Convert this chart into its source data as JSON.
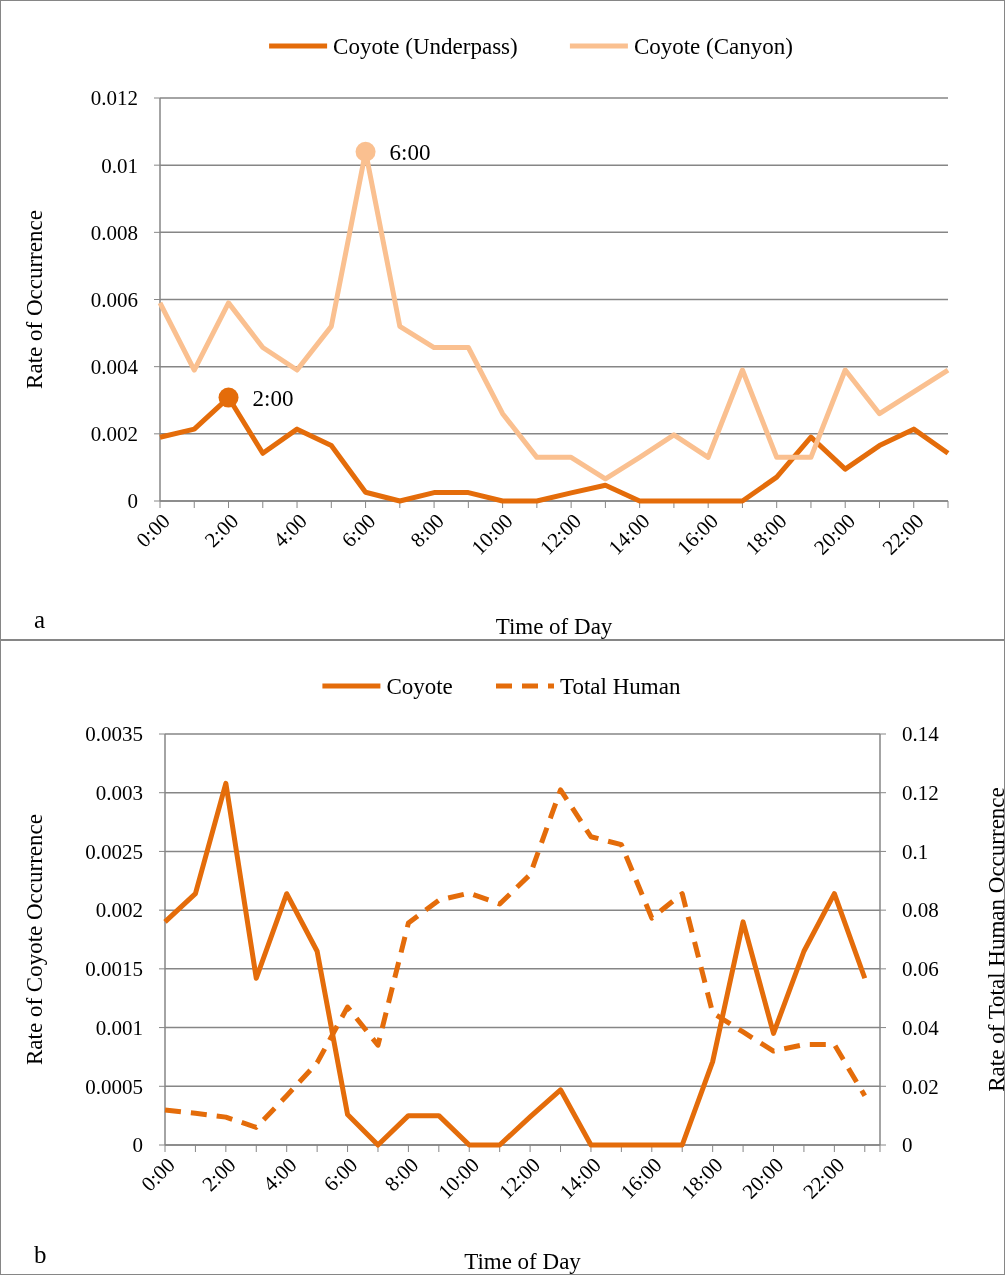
{
  "chart_data": [
    {
      "type": "line",
      "xlabel": "Time of Day",
      "ylabel": "Rate of Occurrence",
      "categories": [
        "0:00",
        null,
        "2:00",
        null,
        "4:00",
        null,
        "6:00",
        null,
        "8:00",
        null,
        "10:00",
        null,
        "12:00",
        null,
        "14:00",
        null,
        "16:00",
        null,
        "18:00",
        null,
        "20:00",
        null,
        "22:00",
        null
      ],
      "series": [
        {
          "name": "Coyote (Underpass)",
          "color": "#e46c0a",
          "values": [
            0.0019,
            0.00214,
            0.00308,
            0.00142,
            0.00214,
            0.00165,
            0.00026,
            0,
            0.00025,
            0.00025,
            0,
            0,
            0.00024,
            0.00047,
            0,
            0,
            0,
            0,
            0.00071,
            0.0019,
            0.00095,
            0.00165,
            0.00214,
            0.00142
          ]
        },
        {
          "name": "Coyote (Canyon)",
          "color": "#fac090",
          "values": [
            0.0059,
            0.0039,
            0.0059,
            0.00457,
            0.0039,
            0.0052,
            0.0104,
            0.0052,
            0.00457,
            0.00457,
            0.0026,
            0.0013,
            0.0013,
            0.00066,
            0.0013,
            0.00197,
            0.0013,
            0.0039,
            0.0013,
            0.0013,
            0.0039,
            0.0026,
            0.00325,
            0.0039
          ]
        }
      ],
      "ylim": [
        0,
        0.012
      ],
      "yticks": [
        0,
        0.002,
        0.004,
        0.006,
        0.008,
        0.01,
        0.012
      ],
      "grid": "y",
      "legend": "top",
      "marker": "none",
      "line_style": "solid",
      "annotations": [
        {
          "text": "6:00",
          "x": "6:00",
          "y": 0.0104
        },
        {
          "text": "2:00",
          "x": "2:00",
          "y": 0.00308
        },
        "a"
      ]
    },
    {
      "type": "line",
      "xlabel": "Time of Day",
      "ylabel": "Rate of Coyote Occurrence",
      "y2label": "Rate of Total Human Occurrence",
      "categories": [
        "0:00",
        null,
        "2:00",
        null,
        "4:00",
        null,
        "6:00",
        null,
        "8:00",
        null,
        "10:00",
        null,
        "12:00",
        null,
        "14:00",
        null,
        "16:00",
        null,
        "18:00",
        null,
        "20:00",
        null,
        "22:00",
        null
      ],
      "series": [
        {
          "name": "Coyote",
          "color": "#e46c0a",
          "line_style": "solid",
          "values": [
            0.0019,
            0.00214,
            0.00308,
            0.00142,
            0.00214,
            0.00165,
            0.00026,
            0,
            0.00025,
            0.00025,
            0,
            0,
            0.00024,
            0.00047,
            0,
            0,
            0,
            0,
            0.00071,
            0.0019,
            0.00095,
            0.00165,
            0.00214,
            0.00142
          ]
        },
        {
          "name": "Total Human",
          "color": "#e46c0a",
          "line_style": "dashed",
          "axis": "y2",
          "values": [
            0.0119,
            0.0108,
            0.0095,
            0.006,
            0.0168,
            0.028,
            0.047,
            0.034,
            0.0756,
            0.0834,
            0.0858,
            0.0821,
            0.0921,
            0.121,
            0.105,
            0.1023,
            0.0773,
            0.0856,
            0.045,
            0.0385,
            0.032,
            0.0342,
            0.0342,
            0.0168
          ]
        }
      ],
      "ylim": [
        0,
        0.0035
      ],
      "yticks": [
        0,
        0.0005,
        0.001,
        0.0015,
        0.002,
        0.0025,
        0.003,
        0.0035
      ],
      "y2lim": [
        0,
        0.14
      ],
      "y2ticks": [
        0,
        0.02,
        0.04,
        0.06,
        0.08,
        0.1,
        0.12,
        0.14
      ],
      "grid": "y",
      "legend": "top",
      "marker": "none",
      "annotations": [
        "b"
      ]
    }
  ]
}
